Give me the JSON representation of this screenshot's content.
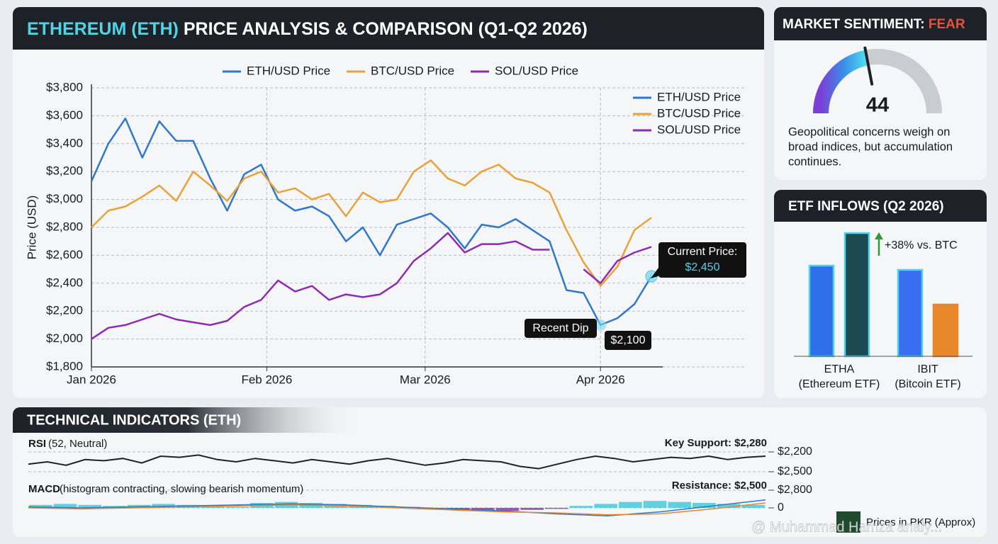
{
  "header": {
    "title_highlight": "ETHEREUM (ETH)",
    "title_rest": "PRICE ANALYSIS & COMPARISON (Q1-Q2 2026)"
  },
  "chart_data": [
    {
      "type": "line",
      "ylabel": "Price (USD)",
      "x": [
        0,
        3,
        6,
        9,
        12,
        15,
        18,
        21,
        24,
        27,
        30,
        33,
        36,
        39,
        42,
        45,
        48,
        51,
        54,
        57,
        60,
        63,
        66,
        69,
        72,
        75,
        78,
        81,
        84,
        87,
        90,
        93,
        96,
        99
      ],
      "xlim": [
        0,
        101
      ],
      "xticks": [
        {
          "value": 0,
          "label": "Jan 2026"
        },
        {
          "value": 31,
          "label": "Feb 2026"
        },
        {
          "value": 59,
          "label": "Mar 2026"
        },
        {
          "value": 90,
          "label": "Apr 2026"
        }
      ],
      "ylim": [
        1800,
        3800
      ],
      "yticks": [
        {
          "value": 1800,
          "label": "$1,800"
        },
        {
          "value": 2000,
          "label": "$2,000"
        },
        {
          "value": 2200,
          "label": "$2,200"
        },
        {
          "value": 2400,
          "label": "$2,400"
        },
        {
          "value": 2600,
          "label": "$2,600"
        },
        {
          "value": 2800,
          "label": "$2,800"
        },
        {
          "value": 3000,
          "label": "$3,000"
        },
        {
          "value": 3200,
          "label": "$3,200"
        },
        {
          "value": 3400,
          "label": "$3,400"
        },
        {
          "value": 3600,
          "label": "$3,600"
        },
        {
          "value": 3800,
          "label": "$3,800"
        }
      ],
      "grid": true,
      "legends": [
        "top",
        "upper right"
      ],
      "series": [
        {
          "name": "ETH/USD Price",
          "color": "#2f78c9",
          "values": [
            3130,
            3400,
            3580,
            3300,
            3560,
            3420,
            3420,
            3150,
            2920,
            3180,
            3250,
            3000,
            2920,
            2950,
            2880,
            2700,
            2800,
            2600,
            2820,
            2860,
            2900,
            2800,
            2650,
            2820,
            2800,
            2860,
            2780,
            2700,
            2350,
            2330,
            2100,
            2150,
            2250,
            2450
          ]
        },
        {
          "name": "BTC/USD Price",
          "color": "#e8a23a",
          "values": [
            2800,
            2920,
            2950,
            3020,
            3100,
            2990,
            3200,
            3100,
            2990,
            3150,
            3200,
            3050,
            3080,
            3000,
            3040,
            2880,
            3050,
            2980,
            3000,
            3200,
            3280,
            3150,
            3100,
            3200,
            3250,
            3150,
            3120,
            3050,
            2780,
            2550,
            2380,
            2520,
            2780,
            2870
          ]
        },
        {
          "name": "SOL/USD Price",
          "color": "#8e2bb0",
          "values": [
            2000,
            2080,
            2100,
            2140,
            2180,
            2140,
            2120,
            2100,
            2130,
            2230,
            2280,
            2420,
            2340,
            2380,
            2280,
            2320,
            2300,
            2320,
            2400,
            2560,
            2650,
            2760,
            2620,
            2680,
            2680,
            2700,
            2640,
            2640,
            null,
            2500,
            2400,
            2560,
            2620,
            2660
          ]
        }
      ],
      "annotations": {
        "dip_label": "Recent Dip",
        "dip_value": "$2,100",
        "current_label": "Current Price:",
        "current_value": "$2,450"
      }
    },
    {
      "type": "bar",
      "title": "ETF INFLOWS (Q2 2026)",
      "categories": [
        "ETHA",
        "IBIT"
      ],
      "category_notes": [
        "(Ethereum ETF)",
        "(Bitcoin ETF)"
      ],
      "ylim": [
        0,
        200
      ],
      "series": [
        {
          "colors": [
            "#2f6fe8",
            "#3a6ef0"
          ],
          "edgecolors": [
            "#4fd4e6",
            "#4fd4e6"
          ],
          "values": [
            128,
            122
          ]
        },
        {
          "colors": [
            "#1d4a52",
            "#e8862a"
          ],
          "edgecolors": [
            "#4fd4e6",
            "#e8862a"
          ],
          "values": [
            174,
            73
          ]
        }
      ],
      "annotation": "+38% vs. BTC"
    },
    {
      "type": "gauge",
      "title_prefix": "MARKET SENTIMENT:",
      "title_highlight": "FEAR",
      "value": 44,
      "range": [
        0,
        100
      ],
      "text_lines": [
        "Geopolitical concerns weigh on",
        "broad indices, but accumulation",
        "continues."
      ]
    },
    {
      "type": "indicators",
      "title": "TECHNICAL INDICATORS (ETH)",
      "rsi": {
        "label": "RSI",
        "note": "(52, Neutral)",
        "ylim": [
          40,
          60
        ],
        "values": [
          48,
          50,
          47,
          52,
          51,
          53,
          49,
          55,
          54,
          56,
          52,
          50,
          53,
          51,
          49,
          52,
          50,
          48,
          51,
          53,
          50,
          47,
          49,
          52,
          51,
          50,
          46,
          44,
          48,
          52,
          55,
          53,
          50,
          52,
          54,
          53,
          55,
          52,
          54,
          55
        ]
      },
      "macd": {
        "label": "MACD",
        "note": "(histogram contracting, slowing bearish momentum)",
        "ylim": [
          -1,
          1
        ],
        "histogram": [
          0.3,
          0.4,
          0.3,
          0.2,
          0.3,
          0.4,
          0.3,
          0.2,
          0.1,
          0.5,
          0.6,
          0.5,
          0.4,
          0.3,
          0.2,
          0.1,
          -0.1,
          -0.2,
          -0.3,
          -0.3,
          -0.2,
          -0.1,
          0.2,
          0.4,
          0.6,
          0.7,
          0.6,
          0.5,
          0.4,
          0.3
        ],
        "macd_line": [
          0.1,
          0.0,
          0.1,
          0.2,
          0.3,
          0.4,
          0.3,
          0.1,
          -0.1,
          -0.3,
          -0.6,
          -0.8,
          -0.4,
          0.2,
          0.8
        ],
        "signal_line": [
          0.0,
          -0.1,
          0.0,
          0.1,
          0.2,
          0.3,
          0.2,
          0.0,
          -0.2,
          -0.4,
          -0.5,
          -0.7,
          -0.6,
          -0.1,
          0.5
        ]
      },
      "support": "Key Support: $2,280",
      "resistance": "Resistance: $2,500",
      "price_labels": [
        "$2,200",
        "$2,500",
        "$2,800",
        "0"
      ],
      "footnote": "Prices in PKR (Approx)",
      "watermark": "@ Muhammad Hamza analy..."
    }
  ]
}
